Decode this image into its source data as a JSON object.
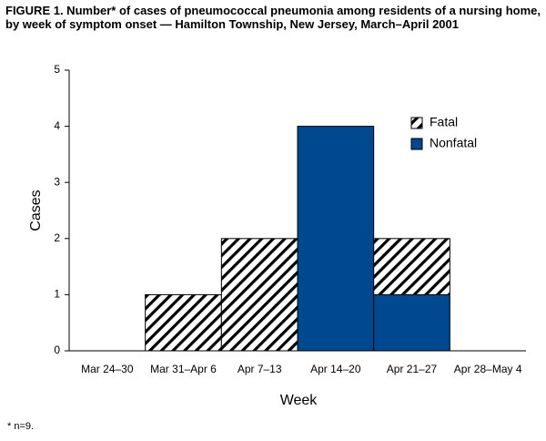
{
  "chart_data": {
    "type": "bar",
    "stacked": true,
    "title": "FIGURE 1. Number* of cases of pneumococcal pneumonia among residents of a nursing home, by week of symptom onset — Hamilton Township, New Jersey, March–April 2001",
    "footnote": "* n=9.",
    "x_label": "Week",
    "y_label": "Cases",
    "categories": [
      "Mar 24–30",
      "Mar 31–Apr 6",
      "Apr 7–13",
      "Apr 14–20",
      "Apr 21–27",
      "Apr 28–May 4"
    ],
    "series": [
      {
        "name": "Nonfatal",
        "color": "#004990",
        "hatch": false,
        "values": [
          0,
          0,
          0,
          4,
          1,
          0
        ]
      },
      {
        "name": "Fatal",
        "color": "#000000",
        "hatch": true,
        "values": [
          0,
          1,
          2,
          0,
          1,
          0
        ]
      }
    ],
    "ylim": [
      0,
      5
    ],
    "yticks": [
      0,
      1,
      2,
      3,
      4,
      5
    ],
    "grid": false,
    "legend": "upper right"
  }
}
